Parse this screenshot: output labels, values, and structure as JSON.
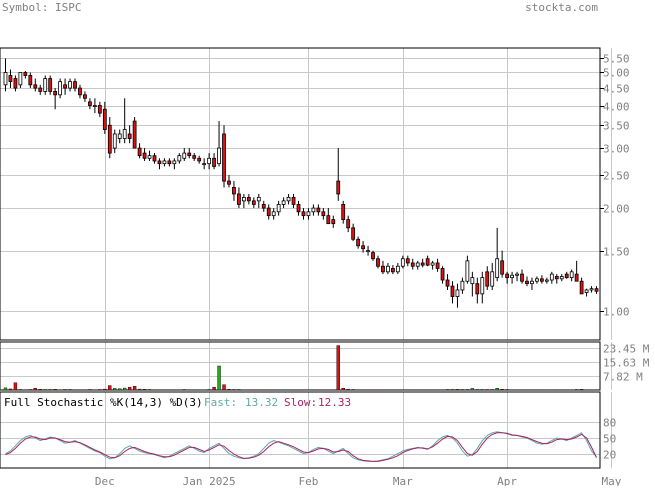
{
  "header": {
    "symbol_label": "Symbol: ISPC",
    "site": "stockta.com"
  },
  "colors": {
    "up": "#ffffff",
    "down": "#dd1111",
    "wick": "#000000",
    "grid": "#c8c8c8",
    "vol_up": "#22aa22",
    "vol_down": "#dd1111",
    "fast": "#5fa8a8",
    "slow": "#aa2266",
    "axis_text": "#808080"
  },
  "chart_data": [
    {
      "type": "candlestick",
      "title": "",
      "y_scale": "log",
      "ylim": [
        0.82,
        5.9
      ],
      "y_ticks": [
        {
          "value": 5.5,
          "label": "5.50"
        },
        {
          "value": 5.0,
          "label": "5.00"
        },
        {
          "value": 4.5,
          "label": "4.50"
        },
        {
          "value": 4.0,
          "label": "4.00"
        },
        {
          "value": 3.5,
          "label": "3.50"
        },
        {
          "value": 3.0,
          "label": "3.00"
        },
        {
          "value": 2.5,
          "label": "2.50"
        },
        {
          "value": 2.0,
          "label": "2.00"
        },
        {
          "value": 1.5,
          "label": "1.50"
        },
        {
          "value": 1.0,
          "label": "1.00"
        }
      ],
      "x_labels": [
        {
          "index": 20,
          "label": "Dec"
        },
        {
          "index": 41,
          "label": "Jan 2025"
        },
        {
          "index": 61,
          "label": "Feb"
        },
        {
          "index": 80,
          "label": "Mar"
        },
        {
          "index": 101,
          "label": "Apr"
        },
        {
          "index": 122,
          "label": "May"
        }
      ],
      "candles": [
        [
          4.6,
          5.5,
          4.4,
          5.0
        ],
        [
          4.9,
          5.1,
          4.5,
          4.7
        ],
        [
          4.8,
          4.9,
          4.4,
          4.5
        ],
        [
          4.6,
          5.0,
          4.5,
          5.0
        ],
        [
          5.0,
          5.05,
          4.8,
          4.9
        ],
        [
          4.9,
          5.0,
          4.5,
          4.6
        ],
        [
          4.6,
          4.8,
          4.4,
          4.5
        ],
        [
          4.5,
          4.6,
          4.3,
          4.4
        ],
        [
          4.4,
          4.9,
          4.3,
          4.8
        ],
        [
          4.8,
          4.9,
          4.3,
          4.4
        ],
        [
          4.4,
          4.5,
          3.9,
          4.3
        ],
        [
          4.3,
          4.8,
          4.2,
          4.7
        ],
        [
          4.6,
          4.8,
          4.3,
          4.5
        ],
        [
          4.5,
          4.8,
          4.4,
          4.7
        ],
        [
          4.7,
          4.8,
          4.4,
          4.5
        ],
        [
          4.5,
          4.6,
          4.2,
          4.3
        ],
        [
          4.3,
          4.4,
          4.1,
          4.2
        ],
        [
          4.1,
          4.2,
          3.9,
          4.0
        ],
        [
          4.0,
          4.2,
          3.8,
          4.0
        ],
        [
          4.0,
          4.1,
          3.7,
          3.8
        ],
        [
          3.9,
          4.1,
          3.3,
          3.4
        ],
        [
          3.5,
          3.7,
          2.8,
          2.9
        ],
        [
          3.0,
          3.4,
          2.9,
          3.3
        ],
        [
          3.2,
          3.4,
          3.1,
          3.3
        ],
        [
          3.2,
          4.2,
          3.1,
          3.4
        ],
        [
          3.3,
          3.5,
          3.1,
          3.2
        ],
        [
          3.6,
          3.7,
          3.0,
          3.0
        ],
        [
          3.0,
          3.1,
          2.8,
          2.85
        ],
        [
          2.9,
          3.0,
          2.75,
          2.8
        ],
        [
          2.8,
          2.95,
          2.75,
          2.85
        ],
        [
          2.85,
          2.9,
          2.7,
          2.75
        ],
        [
          2.75,
          2.8,
          2.6,
          2.7
        ],
        [
          2.7,
          2.8,
          2.65,
          2.75
        ],
        [
          2.75,
          2.8,
          2.65,
          2.7
        ],
        [
          2.7,
          2.8,
          2.6,
          2.75
        ],
        [
          2.75,
          2.9,
          2.7,
          2.85
        ],
        [
          2.8,
          3.0,
          2.75,
          2.9
        ],
        [
          2.9,
          3.0,
          2.8,
          2.85
        ],
        [
          2.85,
          2.9,
          2.75,
          2.8
        ],
        [
          2.8,
          2.85,
          2.7,
          2.75
        ],
        [
          2.7,
          2.8,
          2.6,
          2.7
        ],
        [
          2.7,
          2.9,
          2.6,
          2.8
        ],
        [
          2.8,
          2.9,
          2.6,
          2.65
        ],
        [
          2.7,
          3.6,
          2.65,
          3.0
        ],
        [
          3.3,
          3.5,
          2.3,
          2.4
        ],
        [
          2.4,
          2.5,
          2.3,
          2.35
        ],
        [
          2.3,
          2.4,
          2.1,
          2.2
        ],
        [
          2.2,
          2.3,
          2.0,
          2.05
        ],
        [
          2.1,
          2.2,
          2.0,
          2.15
        ],
        [
          2.15,
          2.2,
          2.05,
          2.1
        ],
        [
          2.1,
          2.15,
          2.0,
          2.05
        ],
        [
          2.1,
          2.2,
          2.0,
          2.15
        ],
        [
          2.05,
          2.1,
          1.95,
          2.0
        ],
        [
          2.0,
          2.05,
          1.85,
          1.9
        ],
        [
          1.9,
          2.0,
          1.85,
          1.95
        ],
        [
          1.95,
          2.1,
          1.9,
          2.05
        ],
        [
          2.05,
          2.15,
          2.0,
          2.1
        ],
        [
          2.1,
          2.2,
          2.05,
          2.15
        ],
        [
          2.15,
          2.2,
          2.0,
          2.05
        ],
        [
          2.05,
          2.1,
          1.9,
          1.95
        ],
        [
          1.95,
          2.0,
          1.85,
          1.9
        ],
        [
          1.9,
          2.0,
          1.85,
          1.95
        ],
        [
          1.95,
          2.05,
          1.9,
          2.0
        ],
        [
          2.0,
          2.05,
          1.9,
          1.95
        ],
        [
          1.95,
          2.0,
          1.85,
          1.9
        ],
        [
          1.9,
          2.0,
          1.8,
          1.8
        ],
        [
          1.85,
          1.9,
          1.75,
          1.8
        ],
        [
          2.4,
          3.0,
          2.1,
          2.2
        ],
        [
          2.05,
          2.1,
          1.8,
          1.85
        ],
        [
          1.85,
          1.9,
          1.7,
          1.75
        ],
        [
          1.75,
          1.8,
          1.6,
          1.62
        ],
        [
          1.62,
          1.65,
          1.52,
          1.55
        ],
        [
          1.55,
          1.6,
          1.48,
          1.52
        ],
        [
          1.5,
          1.55,
          1.45,
          1.5
        ],
        [
          1.48,
          1.5,
          1.4,
          1.42
        ],
        [
          1.42,
          1.45,
          1.33,
          1.35
        ],
        [
          1.35,
          1.4,
          1.28,
          1.3
        ],
        [
          1.3,
          1.38,
          1.28,
          1.35
        ],
        [
          1.33,
          1.36,
          1.28,
          1.3
        ],
        [
          1.3,
          1.38,
          1.28,
          1.35
        ],
        [
          1.35,
          1.45,
          1.33,
          1.42
        ],
        [
          1.42,
          1.45,
          1.35,
          1.38
        ],
        [
          1.38,
          1.42,
          1.32,
          1.35
        ],
        [
          1.35,
          1.4,
          1.32,
          1.38
        ],
        [
          1.38,
          1.42,
          1.34,
          1.36
        ],
        [
          1.42,
          1.45,
          1.35,
          1.36
        ],
        [
          1.36,
          1.4,
          1.32,
          1.38
        ],
        [
          1.38,
          1.42,
          1.3,
          1.33
        ],
        [
          1.33,
          1.35,
          1.2,
          1.23
        ],
        [
          1.23,
          1.28,
          1.15,
          1.18
        ],
        [
          1.18,
          1.22,
          1.05,
          1.1
        ],
        [
          1.1,
          1.2,
          1.02,
          1.15
        ],
        [
          1.15,
          1.25,
          1.12,
          1.22
        ],
        [
          1.22,
          1.45,
          1.2,
          1.4
        ],
        [
          1.2,
          1.3,
          1.1,
          1.25
        ],
        [
          1.2,
          1.25,
          1.05,
          1.12
        ],
        [
          1.12,
          1.3,
          1.05,
          1.25
        ],
        [
          1.3,
          1.35,
          1.15,
          1.18
        ],
        [
          1.18,
          1.38,
          1.15,
          1.3
        ],
        [
          1.25,
          1.75,
          1.22,
          1.42
        ],
        [
          1.4,
          1.5,
          1.25,
          1.28
        ],
        [
          1.28,
          1.3,
          1.2,
          1.25
        ],
        [
          1.25,
          1.3,
          1.2,
          1.27
        ],
        [
          1.27,
          1.3,
          1.22,
          1.28
        ],
        [
          1.28,
          1.32,
          1.2,
          1.22
        ],
        [
          1.22,
          1.26,
          1.18,
          1.2
        ],
        [
          1.2,
          1.25,
          1.15,
          1.22
        ],
        [
          1.22,
          1.26,
          1.2,
          1.24
        ],
        [
          1.24,
          1.27,
          1.2,
          1.22
        ],
        [
          1.22,
          1.25,
          1.2,
          1.23
        ],
        [
          1.23,
          1.3,
          1.2,
          1.28
        ],
        [
          1.26,
          1.28,
          1.2,
          1.24
        ],
        [
          1.24,
          1.28,
          1.22,
          1.26
        ],
        [
          1.28,
          1.3,
          1.24,
          1.25
        ],
        [
          1.25,
          1.32,
          1.22,
          1.3
        ],
        [
          1.28,
          1.4,
          1.25,
          1.22
        ],
        [
          1.22,
          1.25,
          1.12,
          1.12
        ],
        [
          1.13,
          1.16,
          1.1,
          1.15
        ],
        [
          1.15,
          1.18,
          1.13,
          1.16
        ],
        [
          1.16,
          1.18,
          1.12,
          1.14
        ]
      ]
    },
    {
      "type": "bar",
      "title": "",
      "units": "M",
      "ylim": [
        0,
        27
      ],
      "y_ticks": [
        {
          "value": 23.45,
          "label": "23.45 M"
        },
        {
          "value": 15.63,
          "label": "15.63 M"
        },
        {
          "value": 7.82,
          "label": "7.82 M"
        }
      ],
      "values": [
        1.2,
        0.6,
        4.1,
        0.3,
        0.2,
        0.3,
        1.0,
        0.4,
        0.3,
        0.3,
        0.4,
        0.2,
        0.3,
        0.3,
        0.2,
        0.2,
        0.2,
        0.3,
        0.2,
        0.3,
        0.5,
        2.5,
        0.9,
        0.7,
        1.1,
        1.6,
        2.1,
        0.5,
        0.4,
        0.3,
        0.2,
        0.2,
        0.2,
        0.2,
        0.2,
        0.2,
        0.3,
        0.2,
        0.2,
        0.2,
        0.2,
        0.3,
        1.6,
        13.5,
        3.0,
        0.4,
        0.3,
        0.3,
        0.2,
        0.2,
        0.2,
        0.2,
        0.2,
        0.2,
        0.2,
        0.2,
        0.2,
        0.2,
        0.2,
        0.2,
        0.2,
        0.2,
        0.2,
        0.2,
        0.2,
        0.2,
        0.2,
        25.0,
        1.0,
        0.4,
        0.3,
        0.2,
        0.2,
        0.2,
        0.2,
        0.2,
        0.2,
        0.2,
        0.2,
        0.2,
        0.2,
        0.2,
        0.2,
        0.2,
        0.2,
        0.2,
        0.2,
        0.2,
        0.2,
        0.3,
        0.3,
        0.4,
        0.3,
        0.3,
        0.9,
        0.3,
        0.3,
        0.3,
        0.3,
        1.0,
        0.4,
        0.3,
        0.2,
        0.2,
        0.2,
        0.2,
        0.2,
        0.2,
        0.2,
        0.2,
        0.2,
        0.2,
        0.2,
        0.2,
        0.2,
        0.3,
        0.4,
        0.2,
        0.2,
        0.2
      ]
    },
    {
      "type": "line",
      "title": "Full Stochastic %K(14,3) %D(3)",
      "fast_label": "Fast:",
      "fast_value": "13.32",
      "slow_label": "Slow:",
      "slow_value": "12.33",
      "ylim": [
        0,
        100
      ],
      "y_ticks": [
        {
          "value": 80,
          "label": "80"
        },
        {
          "value": 50,
          "label": "50"
        },
        {
          "value": 20,
          "label": "20"
        }
      ],
      "series": [
        {
          "key": "fast",
          "values": [
            20,
            25,
            35,
            45,
            52,
            55,
            50,
            45,
            48,
            52,
            50,
            45,
            40,
            42,
            45,
            40,
            35,
            30,
            25,
            22,
            15,
            10,
            12,
            20,
            30,
            35,
            30,
            25,
            22,
            20,
            18,
            15,
            12,
            15,
            20,
            25,
            30,
            35,
            30,
            25,
            22,
            30,
            35,
            40,
            30,
            20,
            15,
            12,
            10,
            12,
            15,
            20,
            30,
            40,
            45,
            42,
            38,
            35,
            30,
            25,
            20,
            22,
            28,
            32,
            30,
            25,
            20,
            25,
            30,
            20,
            12,
            8,
            6,
            5,
            5,
            6,
            8,
            10,
            15,
            20,
            25,
            28,
            30,
            32,
            30,
            28,
            35,
            45,
            52,
            55,
            50,
            40,
            25,
            15,
            18,
            30,
            45,
            55,
            60,
            62,
            60,
            58,
            55,
            55,
            52,
            50,
            45,
            40,
            38,
            40,
            45,
            50,
            48,
            45,
            50,
            55,
            60,
            45,
            25,
            13.32
          ]
        },
        {
          "key": "slow",
          "values": [
            18,
            22,
            30,
            40,
            48,
            52,
            52,
            48,
            47,
            50,
            50,
            47,
            43,
            42,
            43,
            41,
            37,
            32,
            27,
            23,
            18,
            13,
            12,
            16,
            24,
            30,
            32,
            28,
            24,
            21,
            19,
            16,
            14,
            14,
            17,
            22,
            27,
            32,
            32,
            28,
            24,
            27,
            32,
            37,
            34,
            26,
            19,
            14,
            11,
            11,
            13,
            17,
            24,
            33,
            40,
            43,
            40,
            37,
            33,
            28,
            23,
            22,
            25,
            29,
            30,
            28,
            23,
            24,
            27,
            24,
            16,
            10,
            7,
            6,
            5,
            5,
            7,
            9,
            12,
            16,
            22,
            26,
            29,
            31,
            31,
            29,
            33,
            40,
            48,
            53,
            52,
            45,
            32,
            20,
            17,
            24,
            38,
            50,
            57,
            60,
            60,
            59,
            56,
            55,
            53,
            51,
            47,
            43,
            40,
            39,
            42,
            47,
            48,
            47,
            48,
            52,
            57,
            50,
            32,
            12.33
          ]
        }
      ]
    }
  ]
}
